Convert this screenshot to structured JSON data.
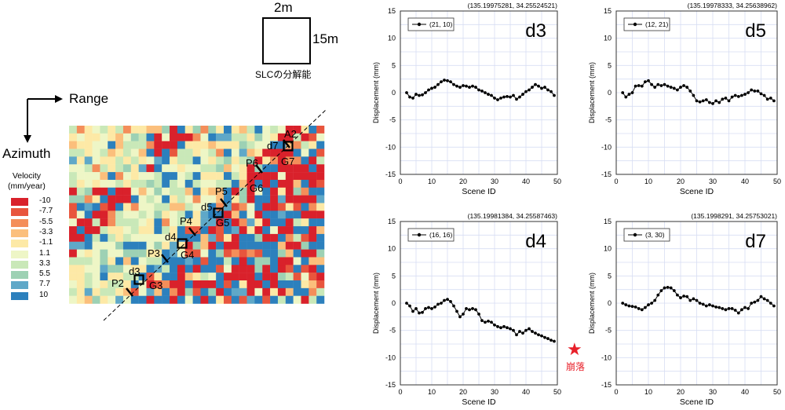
{
  "resolution": {
    "width_label": "2m",
    "height_label": "15m",
    "caption": "SLCの分解能"
  },
  "axes_labels": {
    "range": "Range",
    "azimuth": "Azimuth"
  },
  "legend": {
    "title_line1": "Velocity",
    "title_line2": "(mm/year)",
    "items": [
      {
        "label": "-10",
        "color": "#d9212b"
      },
      {
        "label": "-7.7",
        "color": "#e8553d"
      },
      {
        "label": "-5.5",
        "color": "#f48e5a"
      },
      {
        "label": "-3.3",
        "color": "#fbbf7c"
      },
      {
        "label": "-1.1",
        "color": "#fde9a6"
      },
      {
        "label": "1.1",
        "color": "#eef6c6"
      },
      {
        "label": "3.3",
        "color": "#c9e8b8"
      },
      {
        "label": "5.5",
        "color": "#9dd1b4"
      },
      {
        "label": "7.7",
        "color": "#5fa8c8"
      },
      {
        "label": "10",
        "color": "#2c80bd"
      }
    ]
  },
  "map_labels": {
    "A2": "A2",
    "d7": "d7",
    "G7": "G7",
    "P6": "P6",
    "G6": "G6",
    "P5": "P5",
    "d5": "d5",
    "G5": "G5",
    "P4": "P4",
    "d4": "d4",
    "G4": "G4",
    "P3": "P3",
    "d3": "d3",
    "G3": "G3",
    "P2": "P2"
  },
  "collapse_label": "崩落",
  "chart_data": [
    {
      "type": "line",
      "id": "d3",
      "title": "d3",
      "coord": "(135.19975281, 34.25524521)",
      "legend": "(21, 10)",
      "xlabel": "Scene ID",
      "ylabel": "Displacement (mm)",
      "xlim": [
        0,
        50
      ],
      "ylim": [
        -15,
        15
      ],
      "xticks": [
        "0",
        "10",
        "20",
        "30",
        "40",
        "50"
      ],
      "yticks": [
        "15",
        "10",
        "5",
        "0",
        "-5",
        "-10",
        "-15"
      ],
      "x": [
        2,
        3,
        4,
        5,
        6,
        7,
        8,
        9,
        10,
        11,
        12,
        13,
        14,
        15,
        16,
        17,
        18,
        19,
        20,
        21,
        22,
        23,
        24,
        25,
        26,
        27,
        28,
        29,
        30,
        31,
        32,
        33,
        34,
        35,
        36,
        37,
        38,
        39,
        40,
        41,
        42,
        43,
        44,
        45,
        46,
        47,
        48,
        49
      ],
      "y": [
        0,
        -0.8,
        -1,
        -0.3,
        -0.5,
        -0.4,
        0,
        0.5,
        0.8,
        1,
        1.5,
        2,
        2.3,
        2.2,
        2,
        1.5,
        1.2,
        1,
        1.3,
        1.2,
        1,
        1.2,
        1,
        0.5,
        0.3,
        0,
        -0.3,
        -0.5,
        -1,
        -1.3,
        -1,
        -0.8,
        -0.7,
        -0.8,
        -0.5,
        -1.2,
        -0.8,
        -0.3,
        0.2,
        0.5,
        1,
        1.5,
        1.2,
        0.8,
        1,
        0.5,
        0.2,
        -0.5
      ]
    },
    {
      "type": "line",
      "id": "d5",
      "title": "d5",
      "coord": "(135.19978333, 34.25638962)",
      "legend": "(12, 21)",
      "xlabel": "Scene ID",
      "ylabel": "Displacement (mm)",
      "xlim": [
        0,
        50
      ],
      "ylim": [
        -15,
        15
      ],
      "xticks": [
        "0",
        "10",
        "20",
        "30",
        "40",
        "50"
      ],
      "yticks": [
        "15",
        "10",
        "5",
        "0",
        "-5",
        "-10",
        "-15"
      ],
      "x": [
        2,
        3,
        4,
        5,
        6,
        7,
        8,
        9,
        10,
        11,
        12,
        13,
        14,
        15,
        16,
        17,
        18,
        19,
        20,
        21,
        22,
        23,
        24,
        25,
        26,
        27,
        28,
        29,
        30,
        31,
        32,
        33,
        34,
        35,
        36,
        37,
        38,
        39,
        40,
        41,
        42,
        43,
        44,
        45,
        46,
        47,
        48,
        49
      ],
      "y": [
        0,
        -0.8,
        -0.3,
        0,
        1.2,
        1.3,
        1.2,
        2,
        2.2,
        1.5,
        1,
        1.5,
        1.3,
        1.5,
        1.2,
        1,
        0.8,
        0.5,
        1,
        1.3,
        1,
        0.3,
        -0.5,
        -1.5,
        -1.7,
        -1.5,
        -1.3,
        -1.8,
        -2,
        -1.5,
        -1.8,
        -1.2,
        -1,
        -1.5,
        -0.8,
        -0.5,
        -0.7,
        -0.5,
        -0.3,
        0,
        0.5,
        0.3,
        0.3,
        -0.2,
        -0.5,
        -1.2,
        -1,
        -1.5
      ]
    },
    {
      "type": "line",
      "id": "d4",
      "title": "d4",
      "coord": "(135.19981384, 34.25587463)",
      "legend": "(16, 16)",
      "xlabel": "Scene ID",
      "ylabel": "Displacement (mm)",
      "xlim": [
        0,
        50
      ],
      "ylim": [
        -15,
        15
      ],
      "xticks": [
        "0",
        "10",
        "20",
        "30",
        "40",
        "50"
      ],
      "yticks": [
        "15",
        "10",
        "5",
        "0",
        "-5",
        "-10",
        "-15"
      ],
      "x": [
        2,
        3,
        4,
        5,
        6,
        7,
        8,
        9,
        10,
        11,
        12,
        13,
        14,
        15,
        16,
        17,
        18,
        19,
        20,
        21,
        22,
        23,
        24,
        25,
        26,
        27,
        28,
        29,
        30,
        31,
        32,
        33,
        34,
        35,
        36,
        37,
        38,
        39,
        40,
        41,
        42,
        43,
        44,
        45,
        46,
        47,
        48,
        49
      ],
      "y": [
        0,
        -0.5,
        -1.5,
        -1,
        -1.8,
        -1.7,
        -1,
        -0.8,
        -1,
        -0.7,
        -0.2,
        0,
        0.5,
        0.7,
        0.3,
        -0.5,
        -1.5,
        -2.5,
        -2,
        -1,
        -1.2,
        -1,
        -1.2,
        -2,
        -3.2,
        -3.5,
        -3.3,
        -3.5,
        -4,
        -4.3,
        -4.5,
        -4.3,
        -4.5,
        -4.7,
        -5,
        -5.8,
        -5.2,
        -5.5,
        -5,
        -4.7,
        -5.2,
        -5.5,
        -5.8,
        -6,
        -6.3,
        -6.5,
        -6.8,
        -7
      ]
    },
    {
      "type": "line",
      "id": "d7",
      "title": "d7",
      "coord": "(135.1998291, 34.25753021)",
      "legend": "(3, 30)",
      "xlabel": "Scene ID",
      "ylabel": "Displacement (mm)",
      "xlim": [
        0,
        50
      ],
      "ylim": [
        -15,
        15
      ],
      "xticks": [
        "0",
        "10",
        "20",
        "30",
        "40",
        "50"
      ],
      "yticks": [
        "15",
        "10",
        "5",
        "0",
        "-5",
        "-10",
        "-15"
      ],
      "x": [
        2,
        3,
        4,
        5,
        6,
        7,
        8,
        9,
        10,
        11,
        12,
        13,
        14,
        15,
        16,
        17,
        18,
        19,
        20,
        21,
        22,
        23,
        24,
        25,
        26,
        27,
        28,
        29,
        30,
        31,
        32,
        33,
        34,
        35,
        36,
        37,
        38,
        39,
        40,
        41,
        42,
        43,
        44,
        45,
        46,
        47,
        48,
        49
      ],
      "y": [
        0,
        -0.3,
        -0.5,
        -0.6,
        -0.7,
        -1,
        -1.2,
        -0.8,
        -0.3,
        0,
        0.5,
        1.5,
        2.3,
        2.8,
        2.9,
        2.8,
        2.3,
        1.5,
        1,
        1.3,
        1.2,
        0.5,
        0.8,
        0.5,
        0,
        -0.2,
        -0.5,
        -0.3,
        -0.5,
        -0.7,
        -0.8,
        -1,
        -1.2,
        -1,
        -1,
        -1.3,
        -1.8,
        -1.2,
        -0.8,
        -1,
        0,
        0.2,
        0.5,
        1.2,
        0.8,
        0.5,
        0,
        -0.5
      ]
    }
  ]
}
